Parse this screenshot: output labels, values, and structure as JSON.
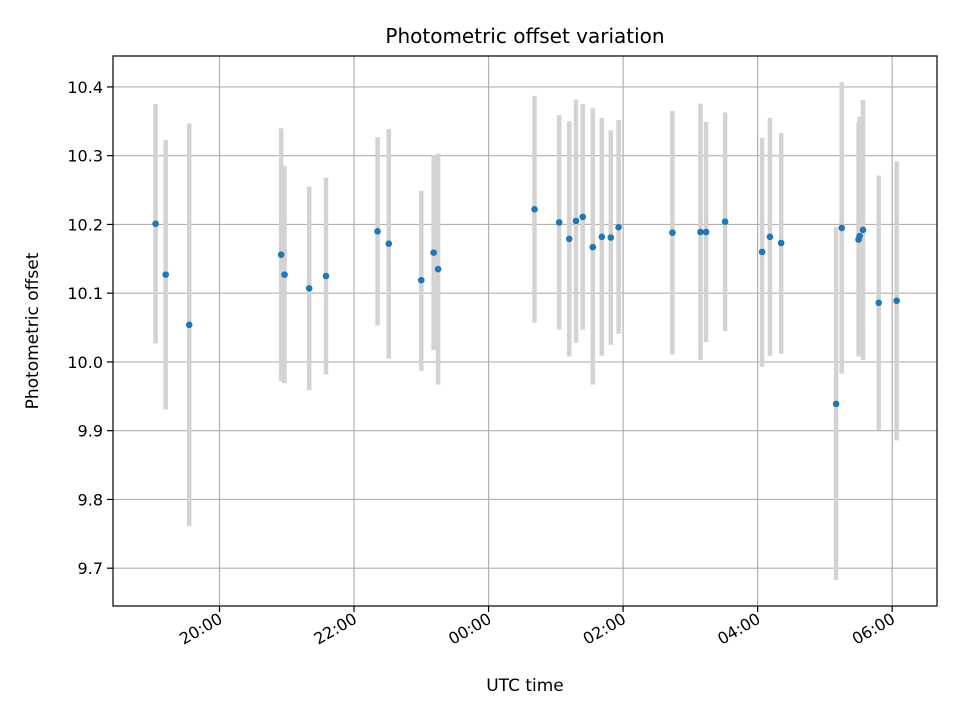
{
  "chart_data": {
    "type": "scatter",
    "title": "Photometric offset variation",
    "xlabel": "UTC time",
    "ylabel": "Photometric offset",
    "x_axis": {
      "type": "time",
      "start": "2020-01-01T18:25",
      "end": "2020-01-02T06:40",
      "ticks": [
        {
          "time": "2020-01-01T20:00",
          "label": "20:00"
        },
        {
          "time": "2020-01-01T22:00",
          "label": "22:00"
        },
        {
          "time": "2020-01-02T00:00",
          "label": "00:00"
        },
        {
          "time": "2020-01-02T02:00",
          "label": "02:00"
        },
        {
          "time": "2020-01-02T04:00",
          "label": "04:00"
        },
        {
          "time": "2020-01-02T06:00",
          "label": "06:00"
        }
      ]
    },
    "y_axis": {
      "min": 9.645,
      "max": 10.445,
      "ticks": [
        9.7,
        9.8,
        9.9,
        10.0,
        10.1,
        10.2,
        10.3,
        10.4
      ],
      "tick_labels": [
        "9.7",
        "9.8",
        "9.9",
        "10.0",
        "10.1",
        "10.2",
        "10.3",
        "10.4"
      ]
    },
    "grid": true,
    "colors": {
      "point": "#1f77b4",
      "errorbar": "#d3d3d3",
      "grid": "#b0b0b0"
    },
    "points": [
      {
        "time": "2020-01-01T19:03",
        "y": 10.201,
        "lo": 10.027,
        "hi": 10.375
      },
      {
        "time": "2020-01-01T19:12",
        "y": 10.127,
        "lo": 9.931,
        "hi": 10.323
      },
      {
        "time": "2020-01-01T19:33",
        "y": 10.054,
        "lo": 9.761,
        "hi": 10.347
      },
      {
        "time": "2020-01-01T20:55",
        "y": 10.156,
        "lo": 9.972,
        "hi": 10.34
      },
      {
        "time": "2020-01-01T20:58",
        "y": 10.127,
        "lo": 9.969,
        "hi": 10.285
      },
      {
        "time": "2020-01-01T21:20",
        "y": 10.107,
        "lo": 9.959,
        "hi": 10.255
      },
      {
        "time": "2020-01-01T21:35",
        "y": 10.125,
        "lo": 9.982,
        "hi": 10.268
      },
      {
        "time": "2020-01-01T22:21",
        "y": 10.19,
        "lo": 10.053,
        "hi": 10.327
      },
      {
        "time": "2020-01-01T22:31",
        "y": 10.172,
        "lo": 10.005,
        "hi": 10.339
      },
      {
        "time": "2020-01-01T23:00",
        "y": 10.119,
        "lo": 9.987,
        "hi": 10.249
      },
      {
        "time": "2020-01-01T23:11",
        "y": 10.159,
        "lo": 10.017,
        "hi": 10.301
      },
      {
        "time": "2020-01-01T23:15",
        "y": 10.135,
        "lo": 9.967,
        "hi": 10.303
      },
      {
        "time": "2020-01-02T00:41",
        "y": 10.222,
        "lo": 10.057,
        "hi": 10.387
      },
      {
        "time": "2020-01-02T01:03",
        "y": 10.203,
        "lo": 10.047,
        "hi": 10.359
      },
      {
        "time": "2020-01-02T01:12",
        "y": 10.179,
        "lo": 10.008,
        "hi": 10.35
      },
      {
        "time": "2020-01-02T01:18",
        "y": 10.205,
        "lo": 10.028,
        "hi": 10.382
      },
      {
        "time": "2020-01-02T01:24",
        "y": 10.211,
        "lo": 10.047,
        "hi": 10.375
      },
      {
        "time": "2020-01-02T01:33",
        "y": 10.167,
        "lo": 9.967,
        "hi": 10.369
      },
      {
        "time": "2020-01-02T01:41",
        "y": 10.182,
        "lo": 10.009,
        "hi": 10.355
      },
      {
        "time": "2020-01-02T01:49",
        "y": 10.181,
        "lo": 10.025,
        "hi": 10.337
      },
      {
        "time": "2020-01-02T01:56",
        "y": 10.196,
        "lo": 10.041,
        "hi": 10.352
      },
      {
        "time": "2020-01-02T02:44",
        "y": 10.188,
        "lo": 10.011,
        "hi": 10.365
      },
      {
        "time": "2020-01-02T03:09",
        "y": 10.189,
        "lo": 10.003,
        "hi": 10.376
      },
      {
        "time": "2020-01-02T03:14",
        "y": 10.189,
        "lo": 10.029,
        "hi": 10.349
      },
      {
        "time": "2020-01-02T03:31",
        "y": 10.204,
        "lo": 10.045,
        "hi": 10.363
      },
      {
        "time": "2020-01-02T04:04",
        "y": 10.16,
        "lo": 9.993,
        "hi": 10.326
      },
      {
        "time": "2020-01-02T04:11",
        "y": 10.182,
        "lo": 10.009,
        "hi": 10.355
      },
      {
        "time": "2020-01-02T04:21",
        "y": 10.173,
        "lo": 10.012,
        "hi": 10.333
      },
      {
        "time": "2020-01-02T05:10",
        "y": 9.939,
        "lo": 9.683,
        "hi": 10.196
      },
      {
        "time": "2020-01-02T05:15",
        "y": 10.195,
        "lo": 9.983,
        "hi": 10.407
      },
      {
        "time": "2020-01-02T05:30",
        "y": 10.178,
        "lo": 10.008,
        "hi": 10.348
      },
      {
        "time": "2020-01-02T05:31",
        "y": 10.183,
        "lo": 10.009,
        "hi": 10.357
      },
      {
        "time": "2020-01-02T05:34",
        "y": 10.192,
        "lo": 10.003,
        "hi": 10.381
      },
      {
        "time": "2020-01-02T05:48",
        "y": 10.086,
        "lo": 9.901,
        "hi": 10.271
      },
      {
        "time": "2020-01-02T06:04",
        "y": 10.089,
        "lo": 9.886,
        "hi": 10.292
      }
    ]
  }
}
